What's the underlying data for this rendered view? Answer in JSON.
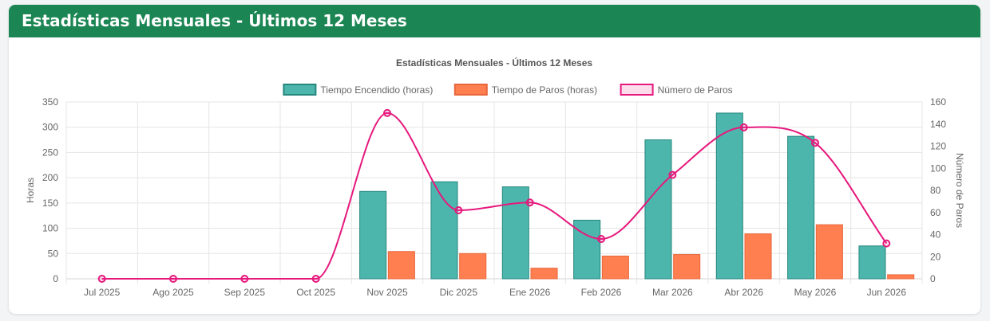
{
  "card": {
    "title": "Estadísticas Mensuales - Últimos 12 Meses"
  },
  "colors": {
    "header_bg": "#1b8653",
    "encendido_fill": "#4db6ac",
    "encendido_border": "#26877e",
    "paros_fill": "#ff7f50",
    "paros_border": "#e8683d",
    "numero_line": "#e6197d",
    "grid": "#e5e5e5"
  },
  "chart_data": {
    "type": "bar",
    "title": "Estadísticas Mensuales - Últimos 12 Meses",
    "categories": [
      "Jul 2025",
      "Ago 2025",
      "Sep 2025",
      "Oct 2025",
      "Nov 2025",
      "Dic 2025",
      "Ene 2026",
      "Feb 2026",
      "Mar 2026",
      "Abr 2026",
      "May 2026",
      "Jun 2026"
    ],
    "series": [
      {
        "name": "Tiempo Encendido (horas)",
        "type": "bar",
        "axis": "left",
        "values": [
          0,
          0,
          0,
          0,
          173,
          192,
          182,
          116,
          275,
          328,
          282,
          65
        ]
      },
      {
        "name": "Tiempo de Paros (horas)",
        "type": "bar",
        "axis": "left",
        "values": [
          0,
          0,
          0,
          0,
          54,
          50,
          21,
          45,
          48,
          89,
          107,
          8
        ]
      },
      {
        "name": "Número de Paros",
        "type": "line",
        "axis": "right",
        "smooth": true,
        "values": [
          0,
          0,
          0,
          0,
          150,
          62,
          69,
          36,
          94,
          137,
          123,
          32
        ]
      }
    ],
    "ylabel": "Horas",
    "ylabel_right": "Número de Paros",
    "ylim": [
      0,
      350
    ],
    "y_ticks": [
      0,
      50,
      100,
      150,
      200,
      250,
      300,
      350
    ],
    "ylim_right": [
      0,
      160
    ],
    "y_ticks_right": [
      0,
      20,
      40,
      60,
      80,
      100,
      120,
      140,
      160
    ],
    "legend_position": "top",
    "grid": true
  }
}
